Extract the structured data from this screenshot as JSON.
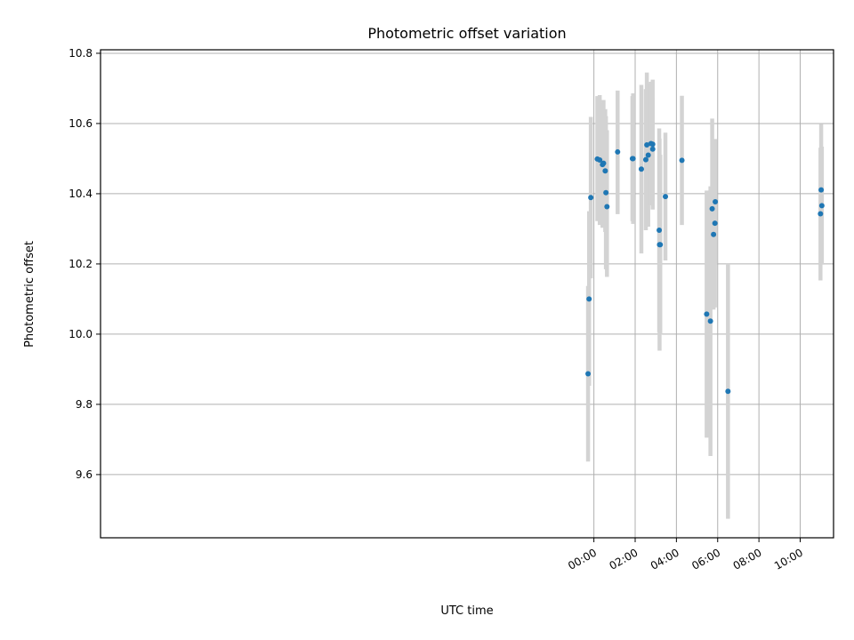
{
  "chart_data": {
    "type": "scatter",
    "title": "Photometric offset variation",
    "xlabel": "UTC time",
    "ylabel": "Photometric offset",
    "x_unit": "hours UTC",
    "xlim": [
      "-23:55",
      "11:37"
    ],
    "ylim": [
      9.42,
      10.81
    ],
    "grid": true,
    "x_ticks": [
      "00:00",
      "02:00",
      "04:00",
      "06:00",
      "08:00",
      "10:00"
    ],
    "y_ticks": [
      "9.6",
      "9.8",
      "10.0",
      "10.2",
      "10.4",
      "10.6",
      "10.8"
    ],
    "colors": {
      "point": "#1f77b4",
      "errorbar": "#d3d3d3"
    },
    "points": [
      {
        "x": "23:43",
        "y": 9.887,
        "lo": 9.637,
        "hi": 10.137
      },
      {
        "x": "23:46",
        "y": 10.1,
        "lo": 9.853,
        "hi": 10.35
      },
      {
        "x": "23:51",
        "y": 10.389,
        "lo": 10.159,
        "hi": 10.619
      },
      {
        "x": "00:10",
        "y": 10.499,
        "lo": 10.322,
        "hi": 10.678
      },
      {
        "x": "00:17",
        "y": 10.496,
        "lo": 10.311,
        "hi": 10.681
      },
      {
        "x": "00:25",
        "y": 10.483,
        "lo": 10.303,
        "hi": 10.657
      },
      {
        "x": "00:28",
        "y": 10.487,
        "lo": 10.307,
        "hi": 10.667
      },
      {
        "x": "00:33",
        "y": 10.465,
        "lo": 10.291,
        "hi": 10.641
      },
      {
        "x": "00:35",
        "y": 10.403,
        "lo": 10.185,
        "hi": 10.621
      },
      {
        "x": "00:38",
        "y": 10.363,
        "lo": 10.163,
        "hi": 10.581
      },
      {
        "x": "01:09",
        "y": 10.519,
        "lo": 10.342,
        "hi": 10.694
      },
      {
        "x": "01:52",
        "y": 10.5,
        "lo": 10.322,
        "hi": 10.678
      },
      {
        "x": "01:54",
        "y": 10.5,
        "lo": 10.314,
        "hi": 10.686
      },
      {
        "x": "02:18",
        "y": 10.47,
        "lo": 10.23,
        "hi": 10.71
      },
      {
        "x": "02:31",
        "y": 10.497,
        "lo": 10.296,
        "hi": 10.698
      },
      {
        "x": "02:34",
        "y": 10.539,
        "lo": 10.333,
        "hi": 10.745
      },
      {
        "x": "02:38",
        "y": 10.51,
        "lo": 10.306,
        "hi": 10.714
      },
      {
        "x": "02:46",
        "y": 10.543,
        "lo": 10.367,
        "hi": 10.719
      },
      {
        "x": "02:51",
        "y": 10.541,
        "lo": 10.355,
        "hi": 10.725
      },
      {
        "x": "02:51",
        "y": 10.527,
        "lo": 10.381,
        "hi": 10.673
      },
      {
        "x": "03:10",
        "y": 10.296,
        "lo": 10.006,
        "hi": 10.586
      },
      {
        "x": "03:11",
        "y": 10.255,
        "lo": 9.953,
        "hi": 10.557
      },
      {
        "x": "03:13",
        "y": 10.255,
        "lo": 9.999,
        "hi": 10.511
      },
      {
        "x": "03:28",
        "y": 10.392,
        "lo": 10.21,
        "hi": 10.574
      },
      {
        "x": "04:16",
        "y": 10.495,
        "lo": 10.311,
        "hi": 10.679
      },
      {
        "x": "05:28",
        "y": 10.057,
        "lo": 9.705,
        "hi": 10.409
      },
      {
        "x": "05:39",
        "y": 10.037,
        "lo": 9.653,
        "hi": 10.421
      },
      {
        "x": "05:44",
        "y": 10.357,
        "lo": 10.102,
        "hi": 10.614
      },
      {
        "x": "05:48",
        "y": 10.284,
        "lo": 10.07,
        "hi": 10.496
      },
      {
        "x": "05:52",
        "y": 10.316,
        "lo": 10.076,
        "hi": 10.556
      },
      {
        "x": "05:53",
        "y": 10.377,
        "lo": 10.199,
        "hi": 10.555
      },
      {
        "x": "06:30",
        "y": 9.837,
        "lo": 9.474,
        "hi": 10.2
      },
      {
        "x": "10:59",
        "y": 10.343,
        "lo": 10.153,
        "hi": 10.531
      },
      {
        "x": "11:01",
        "y": 10.411,
        "lo": 10.224,
        "hi": 10.598
      },
      {
        "x": "11:03",
        "y": 10.366,
        "lo": 10.198,
        "hi": 10.534
      }
    ]
  }
}
